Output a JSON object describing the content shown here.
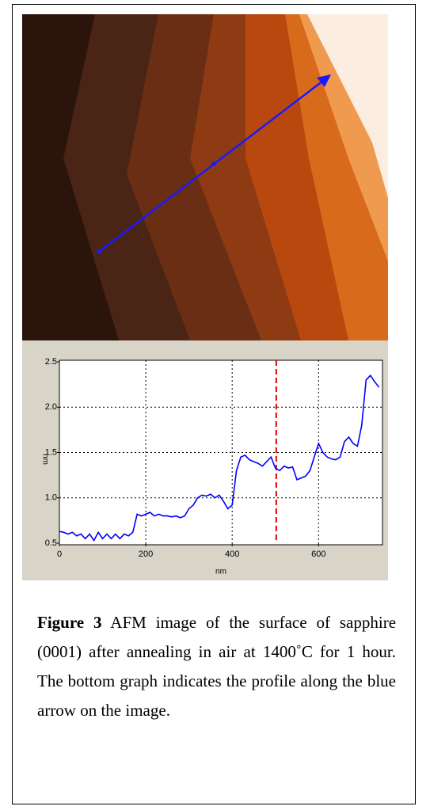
{
  "chart_data": {
    "type": "line",
    "x_label": "nm",
    "y_label": "nm",
    "x": [
      0,
      10,
      20,
      30,
      40,
      50,
      60,
      70,
      80,
      90,
      100,
      110,
      120,
      130,
      140,
      150,
      160,
      170,
      180,
      190,
      200,
      210,
      220,
      230,
      240,
      250,
      260,
      270,
      280,
      290,
      300,
      310,
      320,
      330,
      340,
      350,
      360,
      370,
      380,
      390,
      400,
      410,
      420,
      430,
      440,
      450,
      460,
      470,
      480,
      490,
      500,
      510,
      520,
      530,
      540,
      550,
      560,
      570,
      580,
      590,
      600,
      610,
      620,
      630,
      640,
      650,
      660,
      670,
      680,
      690,
      700,
      710,
      720,
      730,
      740
    ],
    "values": [
      0.63,
      0.62,
      0.6,
      0.62,
      0.58,
      0.6,
      0.55,
      0.6,
      0.53,
      0.62,
      0.55,
      0.6,
      0.55,
      0.6,
      0.55,
      0.6,
      0.58,
      0.62,
      0.82,
      0.8,
      0.82,
      0.84,
      0.8,
      0.82,
      0.8,
      0.8,
      0.79,
      0.8,
      0.78,
      0.8,
      0.88,
      0.92,
      1.0,
      1.03,
      1.02,
      1.04,
      1.0,
      1.03,
      0.96,
      0.88,
      0.92,
      1.3,
      1.45,
      1.47,
      1.42,
      1.4,
      1.38,
      1.35,
      1.4,
      1.45,
      1.33,
      1.3,
      1.35,
      1.33,
      1.34,
      1.2,
      1.22,
      1.24,
      1.3,
      1.45,
      1.6,
      1.5,
      1.45,
      1.43,
      1.42,
      1.45,
      1.62,
      1.67,
      1.6,
      1.57,
      1.8,
      2.3,
      2.35,
      2.28,
      2.22
    ],
    "color": "#0000ff",
    "marker_x": 502,
    "marker_color": "#e00000",
    "xlim": [
      0,
      748
    ],
    "ylim": [
      0.5,
      2.5
    ],
    "xticks": [
      0,
      200,
      400,
      600
    ],
    "yticks": [
      0.5,
      {
        "value": 1.0,
        "label": "1.0"
      },
      1.5,
      {
        "value": 2.0,
        "label": "2.0"
      },
      2.5
    ],
    "grid": true
  },
  "caption": {
    "label": "Figure 3",
    "text": "AFM image of the surface of sapphire (0001) after annealing in air at 1400˚C for 1 hour. The bottom graph indicates the profile along the blue arrow on the image."
  }
}
